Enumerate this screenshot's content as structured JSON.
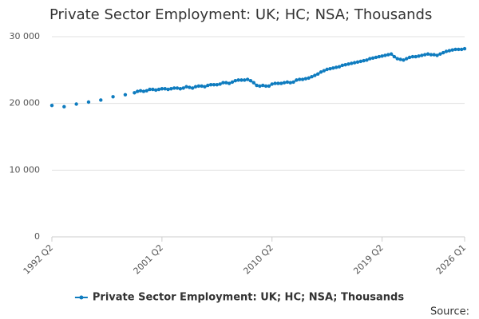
{
  "chart_data": {
    "type": "line",
    "title": "Private Sector Employment: UK; HC; NSA; Thousands",
    "source": "Source:",
    "categories": [
      "1992 Q2",
      null,
      null,
      null,
      null,
      null,
      null,
      null,
      null,
      null,
      null,
      null,
      null,
      null,
      null,
      null,
      null,
      null,
      null,
      null,
      null,
      null,
      null,
      null,
      null,
      null,
      null,
      null,
      null,
      null,
      null,
      null,
      null,
      null,
      null,
      null,
      "2001 Q2",
      null,
      null,
      null,
      null,
      null,
      null,
      null,
      null,
      null,
      null,
      null,
      null,
      null,
      null,
      null,
      null,
      null,
      null,
      null,
      null,
      null,
      null,
      null,
      null,
      null,
      null,
      null,
      null,
      null,
      null,
      null,
      null,
      null,
      null,
      null,
      "2010 Q2",
      null,
      null,
      null,
      null,
      null,
      null,
      null,
      null,
      null,
      null,
      null,
      null,
      null,
      null,
      null,
      null,
      null,
      null,
      null,
      null,
      null,
      null,
      null,
      null,
      null,
      null,
      null,
      null,
      null,
      null,
      null,
      null,
      null,
      null,
      null,
      "2019 Q2",
      null,
      null,
      null,
      null,
      null,
      null,
      null,
      null,
      null,
      null,
      null,
      null,
      null,
      null,
      null,
      null,
      null,
      null,
      null,
      null,
      null,
      null,
      null,
      null,
      null,
      null,
      "2026 Q1"
    ],
    "series": [
      {
        "name": "Private Sector Employment: UK; HC; NSA; Thousands",
        "color": "#0f7cbf",
        "values": [
          19700,
          null,
          null,
          null,
          19500,
          null,
          null,
          null,
          19900,
          null,
          null,
          null,
          20200,
          null,
          null,
          null,
          20500,
          null,
          null,
          null,
          21000,
          null,
          null,
          null,
          21300,
          null,
          null,
          21600,
          21800,
          21900,
          21800,
          21900,
          22100,
          22100,
          22000,
          22100,
          22200,
          22200,
          22100,
          22200,
          22300,
          22300,
          22200,
          22300,
          22500,
          22400,
          22300,
          22500,
          22600,
          22600,
          22500,
          22700,
          22800,
          22800,
          22800,
          22900,
          23100,
          23100,
          23000,
          23200,
          23400,
          23500,
          23500,
          23500,
          23600,
          23400,
          23100,
          22700,
          22600,
          22700,
          22600,
          22600,
          22900,
          23000,
          23000,
          23000,
          23100,
          23200,
          23100,
          23200,
          23500,
          23600,
          23600,
          23700,
          23800,
          24000,
          24200,
          24400,
          24700,
          24900,
          25100,
          25200,
          25300,
          25400,
          25500,
          25700,
          25800,
          25900,
          26000,
          26100,
          26200,
          26300,
          26400,
          26500,
          26700,
          26800,
          26900,
          27000,
          27100,
          27200,
          27300,
          27400,
          27000,
          26700,
          26600,
          26500,
          26700,
          26900,
          27000,
          27000,
          27100,
          27200,
          27300,
          27400,
          27300,
          27300,
          27200,
          27400,
          27600,
          27800,
          27900,
          28000,
          28100,
          28100,
          28100,
          28200
        ]
      }
    ],
    "ylim": [
      0,
      30000
    ],
    "yticks": [
      0,
      {
        "value": 10000,
        "label": "10 000"
      },
      {
        "value": 20000,
        "label": "20 000"
      },
      {
        "value": 30000,
        "label": "30 000"
      }
    ],
    "grid": true
  }
}
